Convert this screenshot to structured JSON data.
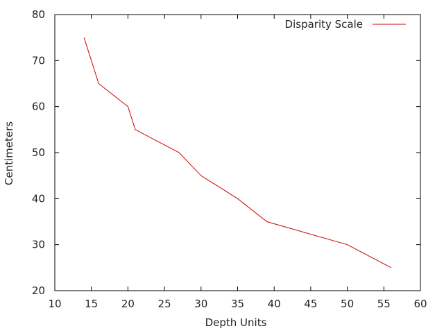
{
  "chart_data": {
    "type": "line",
    "title": "",
    "xlabel": "Depth Units",
    "ylabel": "Centimeters",
    "xlim": [
      10,
      60
    ],
    "ylim": [
      20,
      80
    ],
    "x_ticks": [
      10,
      15,
      20,
      25,
      30,
      35,
      40,
      45,
      50,
      55,
      60
    ],
    "y_ticks": [
      20,
      30,
      40,
      50,
      60,
      70,
      80
    ],
    "grid": false,
    "legend_position": "top-right",
    "series": [
      {
        "name": "Disparity Scale",
        "color": "#cc0000",
        "x": [
          14,
          16,
          20,
          21,
          27,
          30,
          35,
          39,
          50,
          56
        ],
        "y": [
          75,
          65,
          60,
          55,
          50,
          45,
          40,
          35,
          30,
          25
        ]
      }
    ]
  }
}
